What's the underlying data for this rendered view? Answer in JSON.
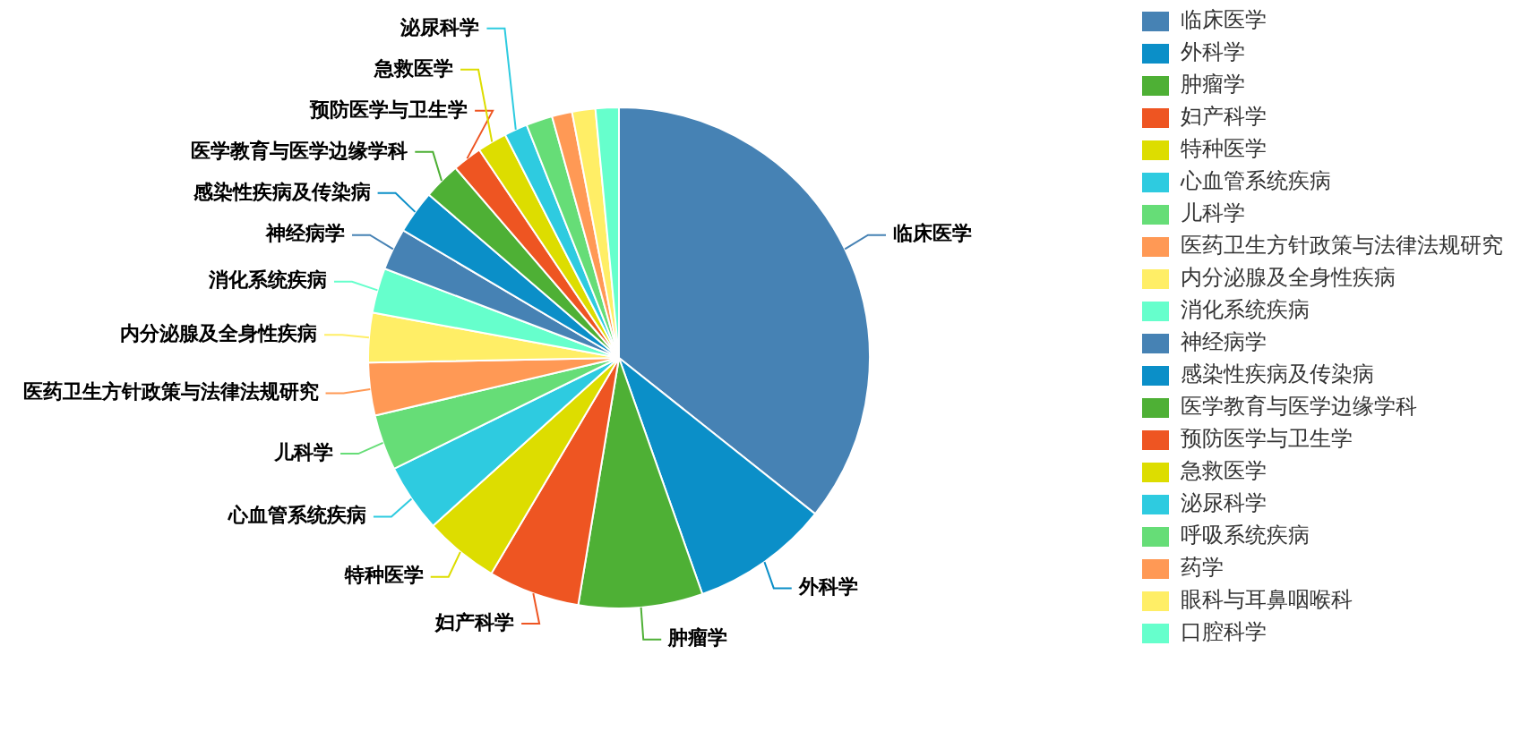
{
  "chart_data": {
    "type": "pie",
    "categories": [
      "临床医学",
      "外科学",
      "肿瘤学",
      "妇产科学",
      "特种医学",
      "心血管系统疾病",
      "儿科学",
      "医药卫生方针政策与法律法规研究",
      "内分泌腺及全身性疾病",
      "消化系统疾病",
      "神经病学",
      "感染性疾病及传染病",
      "医学教育与医学边缘学科",
      "预防医学与卫生学",
      "急救医学",
      "泌尿科学",
      "呼吸系统疾病",
      "药学",
      "眼科与耳鼻咽喉科",
      "口腔科学"
    ],
    "values": [
      35.7,
      8.9,
      8.0,
      5.9,
      4.8,
      4.4,
      3.6,
      3.4,
      3.2,
      2.9,
      2.7,
      2.8,
      2.4,
      1.9,
      1.9,
      1.5,
      1.7,
      1.3,
      1.5,
      1.5
    ],
    "colors": [
      "#4682b4",
      "#0b8fc8",
      "#4eb035",
      "#ee5522",
      "#dddd00",
      "#2ecbe0",
      "#66dd77",
      "#ff9955",
      "#ffee66",
      "#66ffcc",
      "#4682b4",
      "#0b8fc8",
      "#4eb035",
      "#ee5522",
      "#dddd00",
      "#2ecbe0",
      "#66dd77",
      "#ff9955",
      "#ffee66",
      "#66ffcc"
    ],
    "legend": "top right"
  }
}
